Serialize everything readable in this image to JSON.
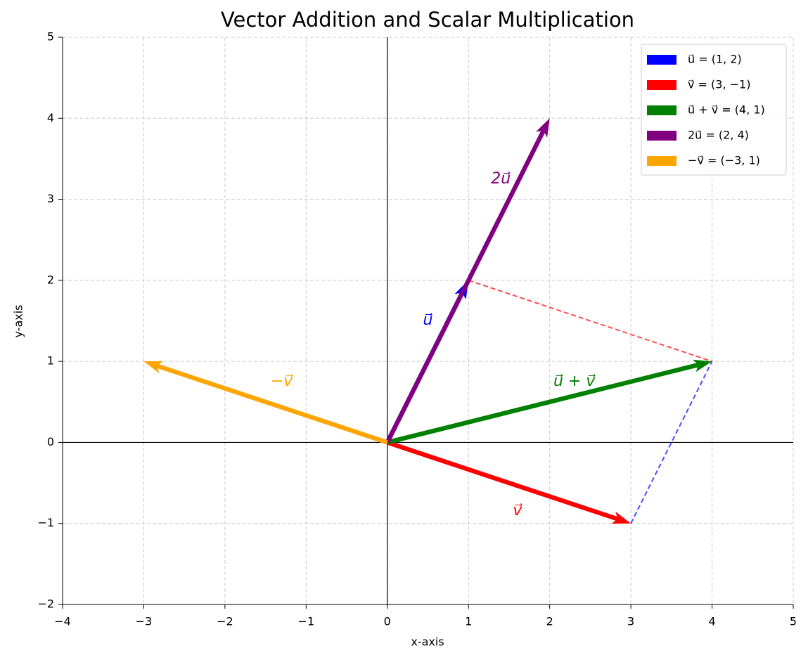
{
  "chart_data": {
    "type": "quiver",
    "title": "Vector Addition and Scalar Multiplication",
    "xlabel": "x-axis",
    "ylabel": "y-axis",
    "xlim": [
      -4,
      5
    ],
    "ylim": [
      -2,
      5
    ],
    "xticks": [
      {
        "value": -4,
        "label": "−4"
      },
      {
        "value": -3,
        "label": "−3"
      },
      {
        "value": -2,
        "label": "−2"
      },
      {
        "value": -1,
        "label": "−1"
      },
      0,
      1,
      2,
      3,
      4,
      5
    ],
    "yticks": [
      {
        "value": -2,
        "label": "−2"
      },
      {
        "value": -1,
        "label": "−1"
      },
      0,
      1,
      2,
      3,
      4,
      5
    ],
    "grid": true,
    "legend": "upper right",
    "series": [
      {
        "name": "u⃗ = (1, 2)",
        "label": "u⃗",
        "color": "#0000ff",
        "origin": [
          0,
          0
        ],
        "vector": [
          1,
          2
        ]
      },
      {
        "name": "v⃗ = (3, −1)",
        "label": "v⃗",
        "color": "#ff0000",
        "origin": [
          0,
          0
        ],
        "vector": [
          3,
          -1
        ]
      },
      {
        "name": "u⃗ + v⃗ = (4, 1)",
        "label": "u⃗ + v⃗",
        "color": "#008000",
        "origin": [
          0,
          0
        ],
        "vector": [
          4,
          1
        ]
      },
      {
        "name": "2u⃗ = (2, 4)",
        "label": "2u⃗",
        "color": "#800080",
        "origin": [
          0,
          0
        ],
        "vector": [
          2,
          4
        ]
      },
      {
        "name": "−v⃗ = (−3, 1)",
        "label": "−v⃗",
        "color": "#ffa500",
        "origin": [
          0,
          0
        ],
        "vector": [
          -3,
          1
        ]
      }
    ],
    "guides": [
      {
        "color": "#ff0000",
        "x": [
          1,
          4
        ],
        "y": [
          2,
          1
        ]
      },
      {
        "color": "#0000ff",
        "x": [
          3,
          4
        ],
        "y": [
          -1,
          1
        ]
      }
    ]
  }
}
